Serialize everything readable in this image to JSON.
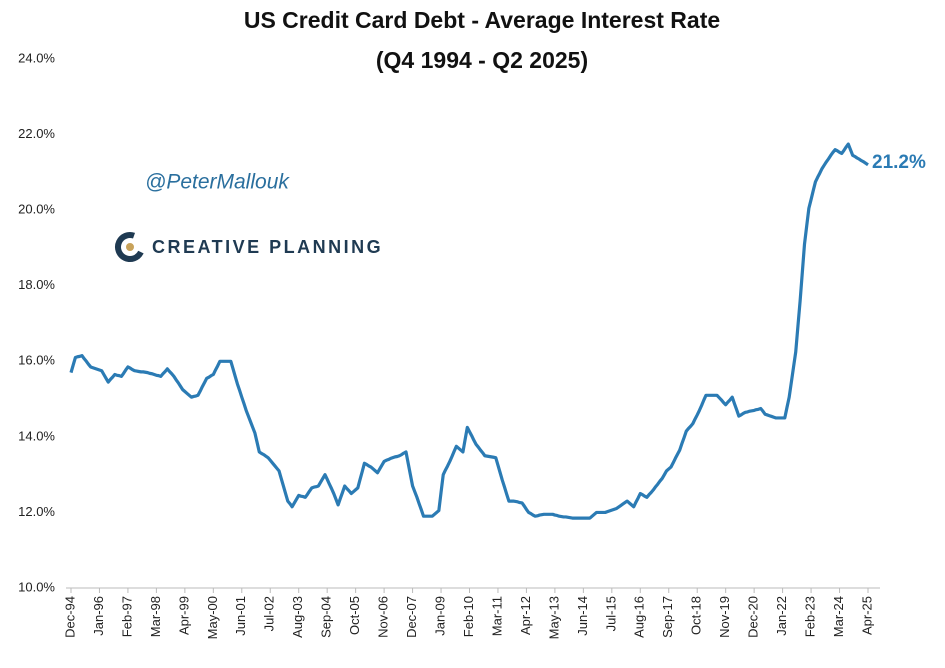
{
  "chart_data": {
    "type": "line",
    "title": "US Credit Card Debt - Average Interest Rate",
    "subtitle": "(Q4 1994 - Q2 2025)",
    "watermark": "@PeterMallouk",
    "brand": "CREATIVE PLANNING",
    "annotations": [
      {
        "text": "21.2%"
      }
    ],
    "categories": [
      "Dec-94",
      null,
      null,
      null,
      null,
      null,
      null,
      null,
      null,
      null,
      null,
      null,
      null,
      "Jan-96",
      null,
      null,
      null,
      null,
      null,
      null,
      null,
      null,
      null,
      null,
      null,
      null,
      "Feb-97",
      null,
      null,
      null,
      null,
      null,
      null,
      null,
      null,
      null,
      null,
      null,
      null,
      "Mar-98",
      null,
      null,
      null,
      null,
      null,
      null,
      null,
      null,
      null,
      null,
      null,
      null,
      "Apr-99",
      null,
      null,
      null,
      null,
      null,
      null,
      null,
      null,
      null,
      null,
      null,
      null,
      "May-00",
      null,
      null,
      null,
      null,
      null,
      null,
      null,
      null,
      null,
      null,
      null,
      null,
      "Jun-01",
      null,
      null,
      null,
      null,
      null,
      null,
      null,
      null,
      null,
      null,
      null,
      null,
      "Jul-02",
      null,
      null,
      null,
      null,
      null,
      null,
      null,
      null,
      null,
      null,
      null,
      null,
      "Aug-03",
      null,
      null,
      null,
      null,
      null,
      null,
      null,
      null,
      null,
      null,
      null,
      null,
      "Sep-04",
      null,
      null,
      null,
      null,
      null,
      null,
      null,
      null,
      null,
      null,
      null,
      null,
      "Oct-05",
      null,
      null,
      null,
      null,
      null,
      null,
      null,
      null,
      null,
      null,
      null,
      null,
      "Nov-06",
      null,
      null,
      null,
      null,
      null,
      null,
      null,
      null,
      null,
      null,
      null,
      null,
      "Dec-07",
      null,
      null,
      null,
      null,
      null,
      null,
      null,
      null,
      null,
      null,
      null,
      null,
      "Jan-09",
      null,
      null,
      null,
      null,
      null,
      null,
      null,
      null,
      null,
      null,
      null,
      null,
      "Feb-10",
      null,
      null,
      null,
      null,
      null,
      null,
      null,
      null,
      null,
      null,
      null,
      null,
      "Mar-11",
      null,
      null,
      null,
      null,
      null,
      null,
      null,
      null,
      null,
      null,
      null,
      null,
      "Apr-12",
      null,
      null,
      null,
      null,
      null,
      null,
      null,
      null,
      null,
      null,
      null,
      null,
      "May-13",
      null,
      null,
      null,
      null,
      null,
      null,
      null,
      null,
      null,
      null,
      null,
      null,
      "Jun-14",
      null,
      null,
      null,
      null,
      null,
      null,
      null,
      null,
      null,
      null,
      null,
      null,
      "Jul-15",
      null,
      null,
      null,
      null,
      null,
      null,
      null,
      null,
      null,
      null,
      null,
      null,
      "Aug-16",
      null,
      null,
      null,
      null,
      null,
      null,
      null,
      null,
      null,
      null,
      null,
      null,
      "Sep-17",
      null,
      null,
      null,
      null,
      null,
      null,
      null,
      null,
      null,
      null,
      null,
      null,
      "Oct-18",
      null,
      null,
      null,
      null,
      null,
      null,
      null,
      null,
      null,
      null,
      null,
      null,
      "Nov-19",
      null,
      null,
      null,
      null,
      null,
      null,
      null,
      null,
      null,
      null,
      null,
      null,
      "Dec-20",
      null,
      null,
      null,
      null,
      null,
      null,
      null,
      null,
      null,
      null,
      null,
      null,
      "Jan-22",
      null,
      null,
      null,
      null,
      null,
      null,
      null,
      null,
      null,
      null,
      null,
      null,
      "Feb-23",
      null,
      null,
      null,
      null,
      null,
      null,
      null,
      null,
      null,
      null,
      null,
      null,
      "Mar-24",
      null,
      null,
      null,
      null,
      null,
      null,
      null,
      null,
      null,
      null,
      null,
      null,
      "Apr-25"
    ],
    "series": [
      {
        "color": "#2b7bb4",
        "values": [
          15.7,
          15.9,
          16.1,
          16.12,
          16.13,
          16.15,
          16.07,
          16.0,
          15.92,
          15.85,
          15.83,
          15.81,
          15.79,
          15.77,
          15.75,
          15.65,
          15.55,
          15.45,
          15.52,
          15.58,
          15.65,
          15.63,
          15.62,
          15.6,
          15.68,
          15.77,
          15.85,
          15.82,
          15.78,
          15.75,
          15.74,
          15.73,
          15.72,
          15.72,
          15.71,
          15.7,
          15.68,
          15.67,
          15.65,
          15.63,
          15.62,
          15.6,
          15.67,
          15.73,
          15.8,
          15.73,
          15.67,
          15.6,
          15.51,
          15.43,
          15.34,
          15.25,
          15.2,
          15.15,
          15.1,
          15.05,
          15.07,
          15.08,
          15.1,
          15.21,
          15.33,
          15.44,
          15.55,
          15.58,
          15.62,
          15.65,
          15.77,
          15.88,
          16.0,
          16.0,
          16.0,
          16.0,
          16.0,
          16.0,
          15.8,
          15.6,
          15.4,
          15.23,
          15.05,
          14.88,
          14.7,
          14.55,
          14.4,
          14.25,
          14.1,
          13.85,
          13.6,
          13.56,
          13.53,
          13.49,
          13.45,
          13.38,
          13.31,
          13.24,
          13.17,
          13.1,
          12.9,
          12.7,
          12.5,
          12.3,
          12.23,
          12.15,
          12.25,
          12.35,
          12.45,
          12.43,
          12.42,
          12.4,
          12.48,
          12.57,
          12.65,
          12.67,
          12.68,
          12.7,
          12.8,
          12.9,
          13.0,
          12.88,
          12.75,
          12.63,
          12.5,
          12.35,
          12.2,
          12.37,
          12.53,
          12.7,
          12.63,
          12.57,
          12.5,
          12.55,
          12.6,
          12.65,
          12.87,
          13.08,
          13.3,
          13.27,
          13.23,
          13.2,
          13.15,
          13.1,
          13.05,
          13.15,
          13.25,
          13.35,
          13.38,
          13.4,
          13.43,
          13.45,
          13.47,
          13.48,
          13.5,
          13.53,
          13.57,
          13.6,
          13.3,
          13.0,
          12.7,
          12.55,
          12.4,
          12.23,
          12.07,
          11.9,
          11.9,
          11.9,
          11.9,
          11.9,
          11.95,
          12.0,
          12.05,
          12.53,
          13.0,
          13.12,
          13.23,
          13.35,
          13.48,
          13.62,
          13.75,
          13.7,
          13.65,
          13.6,
          13.93,
          14.25,
          14.14,
          14.03,
          13.91,
          13.8,
          13.73,
          13.65,
          13.58,
          13.5,
          13.49,
          13.48,
          13.47,
          13.46,
          13.45,
          13.25,
          13.05,
          12.85,
          12.67,
          12.48,
          12.3,
          12.3,
          12.3,
          12.29,
          12.28,
          12.26,
          12.25,
          12.17,
          12.08,
          12.0,
          11.97,
          11.93,
          11.9,
          11.91,
          11.93,
          11.94,
          11.95,
          11.95,
          11.95,
          11.95,
          11.95,
          11.93,
          11.92,
          11.9,
          11.89,
          11.88,
          11.88,
          11.87,
          11.86,
          11.85,
          11.85,
          11.85,
          11.85,
          11.85,
          11.85,
          11.85,
          11.85,
          11.85,
          11.9,
          11.95,
          12.0,
          12.0,
          12.0,
          12.0,
          12.0,
          12.02,
          12.04,
          12.06,
          12.08,
          12.1,
          12.14,
          12.18,
          12.22,
          12.26,
          12.3,
          12.25,
          12.2,
          12.15,
          12.27,
          12.38,
          12.5,
          12.47,
          12.43,
          12.4,
          12.47,
          12.53,
          12.6,
          12.68,
          12.75,
          12.83,
          12.9,
          13.0,
          13.1,
          13.15,
          13.2,
          13.31,
          13.43,
          13.54,
          13.65,
          13.82,
          13.98,
          14.15,
          14.22,
          14.28,
          14.35,
          14.47,
          14.58,
          14.7,
          14.83,
          14.97,
          15.1,
          15.1,
          15.1,
          15.1,
          15.1,
          15.1,
          15.04,
          14.98,
          14.91,
          14.85,
          14.92,
          14.98,
          15.05,
          14.88,
          14.72,
          14.55,
          14.58,
          14.62,
          14.65,
          14.66,
          14.68,
          14.69,
          14.7,
          14.72,
          14.73,
          14.75,
          14.68,
          14.6,
          14.58,
          14.56,
          14.54,
          14.52,
          14.5,
          14.5,
          14.5,
          14.5,
          14.5,
          14.78,
          15.05,
          15.45,
          15.85,
          16.25,
          16.93,
          17.6,
          18.35,
          19.1,
          19.58,
          20.05,
          20.28,
          20.52,
          20.75,
          20.87,
          20.98,
          21.1,
          21.19,
          21.28,
          21.36,
          21.45,
          21.53,
          21.6,
          21.57,
          21.53,
          21.5,
          21.58,
          21.67,
          21.75,
          21.6,
          21.45,
          21.42,
          21.38,
          21.35,
          21.31,
          21.28,
          21.24,
          21.2
        ]
      }
    ],
    "ylim": [
      10,
      24
    ],
    "yticks": [
      {
        "value": 10,
        "label": "10.0%"
      },
      {
        "value": 12,
        "label": "12.0%"
      },
      {
        "value": 14,
        "label": "14.0%"
      },
      {
        "value": 16,
        "label": "16.0%"
      },
      {
        "value": 18,
        "label": "18.0%"
      },
      {
        "value": 20,
        "label": "20.0%"
      },
      {
        "value": 22,
        "label": "22.0%"
      },
      {
        "value": 24,
        "label": "24.0%"
      }
    ],
    "grid": false
  }
}
